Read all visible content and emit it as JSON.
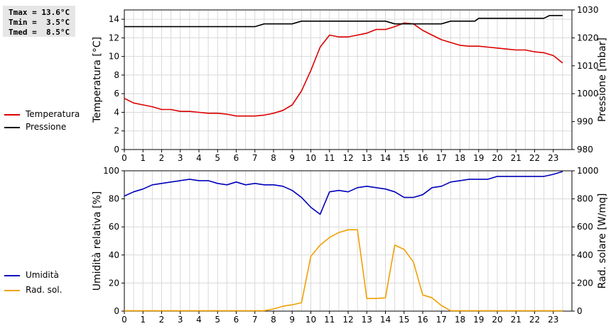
{
  "stats": {
    "tmax": "Tmax = 13.6°C",
    "tmin": "Tmin =  3.5°C",
    "tmed": "Tmed =  8.5°C"
  },
  "colors": {
    "temperature": "#dd0000",
    "pressure": "#000000",
    "humidity": "#0000bb",
    "solar": "#f0a000",
    "grid": "#d9d9d9"
  },
  "chart_data": [
    {
      "type": "line",
      "x_ticks": [
        "0",
        "1",
        "2",
        "3",
        "4",
        "5",
        "6",
        "7",
        "8",
        "9",
        "10",
        "11",
        "12",
        "13",
        "14",
        "15",
        "16",
        "17",
        "18",
        "19",
        "20",
        "21",
        "22",
        "23"
      ],
      "xlim": [
        0,
        24
      ],
      "ylabel_left": "Temperatura [°C]",
      "ylabel_right": "Pressione [mbar]",
      "ylim_left": [
        0,
        15
      ],
      "yticks_left": [
        "0",
        "2",
        "4",
        "6",
        "8",
        "10",
        "12",
        "14"
      ],
      "ylim_right": [
        980,
        1030
      ],
      "yticks_right": [
        "980",
        "990",
        "1000",
        "1010",
        "1020",
        "1030"
      ],
      "grid": true,
      "legend_position": "left",
      "series": [
        {
          "name": "Temperatura",
          "axis": "left",
          "points": [
            [
              0,
              5.5
            ],
            [
              0.5,
              5.0
            ],
            [
              1,
              4.8
            ],
            [
              1.5,
              4.6
            ],
            [
              2,
              4.3
            ],
            [
              2.5,
              4.3
            ],
            [
              3,
              4.1
            ],
            [
              3.5,
              4.1
            ],
            [
              4,
              4.0
            ],
            [
              4.5,
              3.9
            ],
            [
              5,
              3.9
            ],
            [
              5.5,
              3.8
            ],
            [
              6,
              3.6
            ],
            [
              6.5,
              3.6
            ],
            [
              7,
              3.6
            ],
            [
              7.5,
              3.7
            ],
            [
              8,
              3.9
            ],
            [
              8.5,
              4.2
            ],
            [
              9,
              4.8
            ],
            [
              9.5,
              6.3
            ],
            [
              10,
              8.5
            ],
            [
              10.5,
              11.0
            ],
            [
              11,
              12.3
            ],
            [
              11.5,
              12.1
            ],
            [
              12,
              12.1
            ],
            [
              12.5,
              12.3
            ],
            [
              13,
              12.5
            ],
            [
              13.5,
              12.9
            ],
            [
              14,
              12.9
            ],
            [
              14.5,
              13.2
            ],
            [
              15,
              13.6
            ],
            [
              15.5,
              13.5
            ],
            [
              16,
              12.8
            ],
            [
              16.5,
              12.3
            ],
            [
              17,
              11.8
            ],
            [
              17.5,
              11.5
            ],
            [
              18,
              11.2
            ],
            [
              18.5,
              11.1
            ],
            [
              19,
              11.1
            ],
            [
              19.5,
              11.0
            ],
            [
              20,
              10.9
            ],
            [
              20.5,
              10.8
            ],
            [
              21,
              10.7
            ],
            [
              21.5,
              10.7
            ],
            [
              22,
              10.5
            ],
            [
              22.5,
              10.4
            ],
            [
              23,
              10.1
            ],
            [
              23.5,
              9.3
            ]
          ]
        },
        {
          "name": "Pressione",
          "axis": "right",
          "points": [
            [
              0,
              1024
            ],
            [
              7,
              1024
            ],
            [
              7.5,
              1025
            ],
            [
              9,
              1025
            ],
            [
              9.5,
              1026
            ],
            [
              14,
              1026
            ],
            [
              14.5,
              1025
            ],
            [
              17,
              1025
            ],
            [
              17.5,
              1026
            ],
            [
              18.8,
              1026
            ],
            [
              19,
              1027
            ],
            [
              22.5,
              1027
            ],
            [
              22.8,
              1028
            ],
            [
              23.5,
              1028
            ]
          ]
        }
      ]
    },
    {
      "type": "line",
      "x_ticks": [
        "0",
        "1",
        "2",
        "3",
        "4",
        "5",
        "6",
        "7",
        "8",
        "9",
        "10",
        "11",
        "12",
        "13",
        "14",
        "15",
        "16",
        "17",
        "18",
        "19",
        "20",
        "21",
        "22",
        "23"
      ],
      "xlim": [
        0,
        24
      ],
      "ylabel_left": "Umidità relativa [%]",
      "ylabel_right": "Rad. solare [W/mq]",
      "ylim_left": [
        0,
        100
      ],
      "yticks_left": [
        "0",
        "20",
        "40",
        "60",
        "80",
        "100"
      ],
      "ylim_right": [
        0,
        1000
      ],
      "yticks_right": [
        "0",
        "200",
        "400",
        "600",
        "800",
        "1000"
      ],
      "grid": true,
      "legend_position": "left",
      "series": [
        {
          "name": "Umidità",
          "axis": "left",
          "points": [
            [
              0,
              82
            ],
            [
              0.5,
              85
            ],
            [
              1,
              87
            ],
            [
              1.5,
              90
            ],
            [
              2,
              91
            ],
            [
              2.5,
              92
            ],
            [
              3,
              93
            ],
            [
              3.5,
              94
            ],
            [
              4,
              93
            ],
            [
              4.5,
              93
            ],
            [
              5,
              91
            ],
            [
              5.5,
              90
            ],
            [
              6,
              92
            ],
            [
              6.5,
              90
            ],
            [
              7,
              91
            ],
            [
              7.5,
              90
            ],
            [
              8,
              90
            ],
            [
              8.5,
              89
            ],
            [
              9,
              86
            ],
            [
              9.5,
              81
            ],
            [
              10,
              74
            ],
            [
              10.5,
              69
            ],
            [
              11,
              85
            ],
            [
              11.5,
              86
            ],
            [
              12,
              85
            ],
            [
              12.5,
              88
            ],
            [
              13,
              89
            ],
            [
              13.5,
              88
            ],
            [
              14,
              87
            ],
            [
              14.5,
              85
            ],
            [
              15,
              81
            ],
            [
              15.5,
              81
            ],
            [
              16,
              83
            ],
            [
              16.5,
              88
            ],
            [
              17,
              89
            ],
            [
              17.5,
              92
            ],
            [
              18,
              93
            ],
            [
              18.5,
              94
            ],
            [
              19,
              94
            ],
            [
              19.5,
              94
            ],
            [
              20,
              96
            ],
            [
              21,
              96
            ],
            [
              22,
              96
            ],
            [
              22.5,
              96
            ],
            [
              23,
              97.5
            ],
            [
              23.5,
              99.5
            ]
          ]
        },
        {
          "name": "Rad. sol.",
          "axis": "right",
          "points": [
            [
              0,
              3
            ],
            [
              7.5,
              3
            ],
            [
              8,
              15
            ],
            [
              8.5,
              35
            ],
            [
              9,
              45
            ],
            [
              9.5,
              60
            ],
            [
              10,
              390
            ],
            [
              10.5,
              470
            ],
            [
              11,
              525
            ],
            [
              11.5,
              560
            ],
            [
              12,
              580
            ],
            [
              12.5,
              580
            ],
            [
              13,
              90
            ],
            [
              13.5,
              90
            ],
            [
              14,
              95
            ],
            [
              14.5,
              470
            ],
            [
              15,
              440
            ],
            [
              15.5,
              350
            ],
            [
              16,
              115
            ],
            [
              16.5,
              95
            ],
            [
              17,
              40
            ],
            [
              17.5,
              3
            ],
            [
              23.5,
              3
            ]
          ]
        }
      ]
    }
  ]
}
